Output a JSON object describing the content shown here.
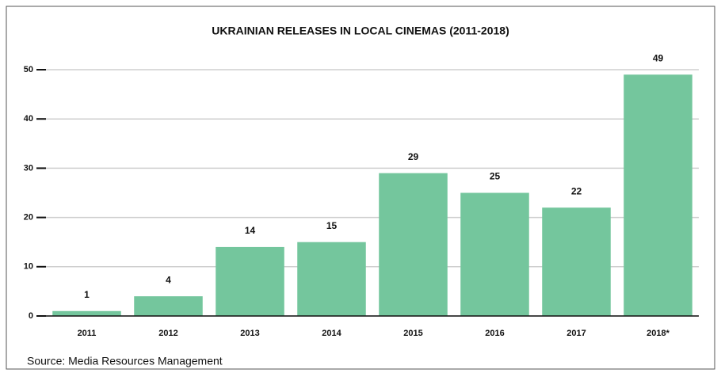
{
  "chart_data": {
    "type": "bar",
    "title": "UKRAINIAN RELEASES IN LOCAL CINEMAS (2011-2018)",
    "categories": [
      "2011",
      "2012",
      "2013",
      "2014",
      "2015",
      "2016",
      "2017",
      "2018*"
    ],
    "values": [
      1,
      4,
      14,
      15,
      29,
      25,
      22,
      49
    ],
    "color": "#74c69d",
    "ylim": [
      0,
      50
    ],
    "yticks": [
      0,
      10,
      20,
      30,
      40,
      50
    ],
    "grid": true,
    "source": "Source: Media Resources Management"
  }
}
